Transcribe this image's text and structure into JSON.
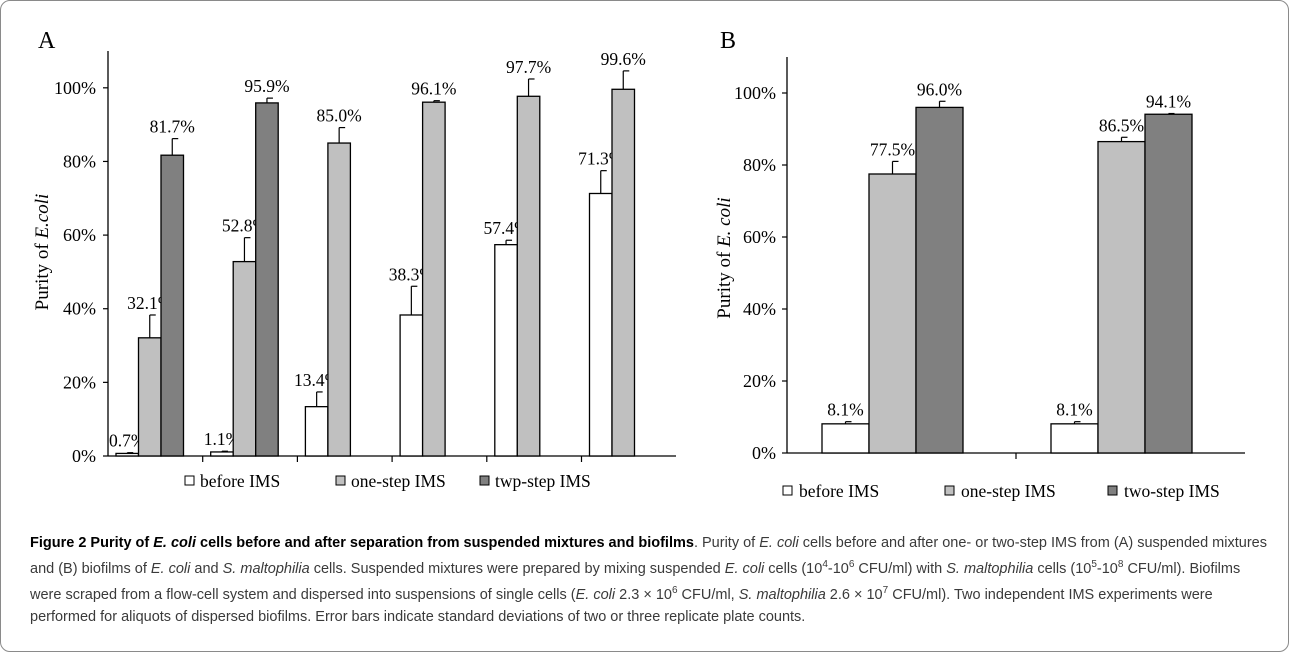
{
  "chart_data": [
    {
      "panel": "A",
      "type": "bar",
      "ylabel": "Purity of E.coli",
      "ylim": [
        0,
        1
      ],
      "yticks": [
        0,
        0.2,
        0.4,
        0.6,
        0.8,
        1.0
      ],
      "ytick_labels": [
        "0%",
        "20%",
        "40%",
        "60%",
        "80%",
        "100%"
      ],
      "grid": false,
      "legend_position": "bottom",
      "n_groups": 6,
      "colors": {
        "before": "#ffffff",
        "one": "#c0c0c0",
        "two": "#808080"
      },
      "series": [
        {
          "name": "before IMS",
          "key": "before",
          "values": [
            0.007,
            0.011,
            0.134,
            0.383,
            0.574,
            0.713
          ],
          "errors": [
            0.002,
            0.002,
            0.04,
            0.078,
            0.012,
            0.062
          ],
          "labels": [
            "0.7%",
            "1.1%",
            "13.4%",
            "38.3%",
            "57.4%",
            "71.3%"
          ]
        },
        {
          "name": "one-step IMS",
          "key": "one",
          "values": [
            0.321,
            0.528,
            0.85,
            0.961,
            0.977,
            0.996
          ],
          "errors": [
            0.062,
            0.065,
            0.042,
            0.004,
            0.047,
            0.05
          ],
          "labels": [
            "32.1%",
            "52.8%",
            "85.0%",
            "96.1%",
            "97.7%",
            "99.6%"
          ]
        },
        {
          "name": "twp-step IMS",
          "key": "two",
          "values": [
            0.817,
            0.959,
            null,
            null,
            null,
            null
          ],
          "errors": [
            0.045,
            0.013,
            null,
            null,
            null,
            null
          ],
          "labels": [
            "81.7%",
            "95.9%",
            "",
            "",
            "",
            ""
          ]
        }
      ]
    },
    {
      "panel": "B",
      "type": "bar",
      "ylabel": "Purity of E. coli",
      "ylim": [
        0,
        1.1
      ],
      "yticks": [
        0,
        0.2,
        0.4,
        0.6,
        0.8,
        1.0
      ],
      "ytick_labels": [
        "0%",
        "20%",
        "40%",
        "60%",
        "80%",
        "100%"
      ],
      "grid": false,
      "legend_position": "bottom",
      "n_groups": 2,
      "colors": {
        "before": "#ffffff",
        "one": "#c0c0c0",
        "two": "#808080"
      },
      "series": [
        {
          "name": "before IMS",
          "key": "before",
          "values": [
            0.081,
            0.081
          ],
          "errors": [
            0.006,
            0.006
          ],
          "labels": [
            "8.1%",
            "8.1%"
          ]
        },
        {
          "name": "one-step IMS",
          "key": "one",
          "values": [
            0.775,
            0.865
          ],
          "errors": [
            0.035,
            0.012
          ],
          "labels": [
            "77.5%",
            "86.5%"
          ]
        },
        {
          "name": "two-step IMS",
          "key": "two",
          "values": [
            0.96,
            0.941
          ],
          "errors": [
            0.017,
            0.002
          ],
          "labels": [
            "96.0%",
            "94.1%"
          ]
        }
      ]
    }
  ],
  "caption": {
    "title_pre": "Figure 2 Purity of ",
    "title_ital": "E. coli",
    "title_post": " cells before and after separation from suspended mixtures and biofilms",
    "body": [
      {
        "t": ". Purity of "
      },
      {
        "i": "E. coli"
      },
      {
        "t": " cells before and after one- or two-step IMS from (A) suspended mixtures and (B) biofilms of "
      },
      {
        "i": "E. coli"
      },
      {
        "t": " and "
      },
      {
        "i": "S. maltophilia"
      },
      {
        "t": " cells. Suspended mixtures were prepared by mixing suspended "
      },
      {
        "i": "E. coli"
      },
      {
        "t": " cells (10"
      },
      {
        "sup": "4"
      },
      {
        "t": "-10"
      },
      {
        "sup": "6"
      },
      {
        "t": " CFU/ml) with "
      },
      {
        "i": "S. maltophilia"
      },
      {
        "t": " cells (10"
      },
      {
        "sup": "5"
      },
      {
        "t": "-10"
      },
      {
        "sup": "8"
      },
      {
        "t": " CFU/ml). Biofilms were scraped from a flow-cell system and dispersed into suspensions of single cells ("
      },
      {
        "i": "E. coli"
      },
      {
        "t": " 2.3 × 10"
      },
      {
        "sup": "6"
      },
      {
        "t": " CFU/ml, "
      },
      {
        "i": "S. maltophilia"
      },
      {
        "t": " 2.6 × 10"
      },
      {
        "sup": "7"
      },
      {
        "t": " CFU/ml). Two independent IMS experiments were performed for aliquots of dispersed biofilms. Error bars indicate standard deviations of two or three replicate plate counts."
      }
    ]
  }
}
